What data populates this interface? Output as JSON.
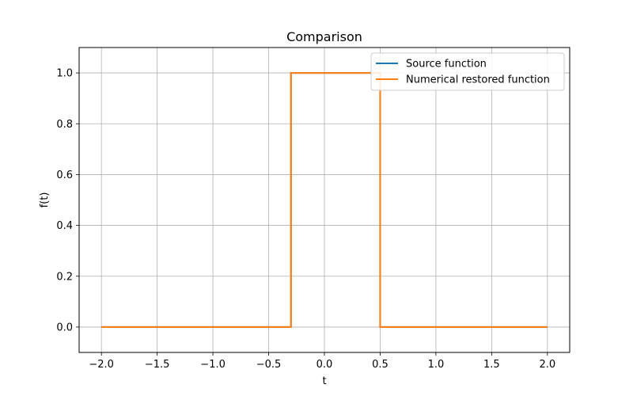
{
  "chart_data": {
    "type": "line",
    "title": "Comparison",
    "xlabel": "t",
    "ylabel": "f(t)",
    "xlim": [
      -2.2,
      2.2
    ],
    "ylim": [
      -0.1,
      1.1
    ],
    "xticks": [
      -2.0,
      -1.5,
      -1.0,
      -0.5,
      0.0,
      0.5,
      1.0,
      1.5,
      2.0
    ],
    "xtick_labels": [
      "−2.0",
      "−1.5",
      "−1.0",
      "−0.5",
      "0.0",
      "0.5",
      "1.0",
      "1.5",
      "2.0"
    ],
    "yticks": [
      0.0,
      0.2,
      0.4,
      0.6,
      0.8,
      1.0
    ],
    "ytick_labels": [
      "0.0",
      "0.2",
      "0.4",
      "0.6",
      "0.8",
      "1.0"
    ],
    "grid": true,
    "legend_position": "top-right",
    "series": [
      {
        "name": "Source function",
        "color": "#1f77b4",
        "x": [
          -2.0,
          -0.3,
          -0.3,
          0.5,
          0.5,
          2.0
        ],
        "y": [
          0.0,
          0.0,
          1.0,
          1.0,
          0.0,
          0.0
        ]
      },
      {
        "name": "Numerical restored function",
        "color": "#ff7f0e",
        "x": [
          -2.0,
          -0.3,
          -0.3,
          0.5,
          0.5,
          2.0
        ],
        "y": [
          0.0,
          0.0,
          1.0,
          1.0,
          0.0,
          0.0
        ]
      }
    ]
  }
}
